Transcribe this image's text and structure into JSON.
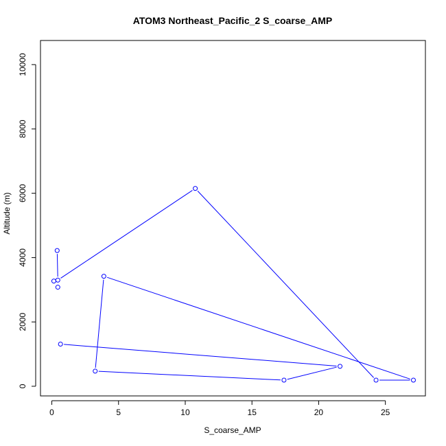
{
  "chart_data": {
    "type": "line",
    "title": "ATOM3 Northeast_Pacific_2 S_coarse_AMP",
    "xlabel": "S_coarse_AMP",
    "ylabel": "Altitude (m)",
    "xlim": [
      -0.85,
      28.0
    ],
    "ylim": [
      -300,
      10750
    ],
    "xticks": [
      0,
      5,
      10,
      15,
      20,
      25
    ],
    "yticks": [
      0,
      2000,
      4000,
      6000,
      8000,
      10000
    ],
    "grid": false,
    "legend": "none",
    "series_color": "#0000ff",
    "points": [
      {
        "x": 0.4,
        "y": 4220
      },
      {
        "x": 0.45,
        "y": 3300
      },
      {
        "x": 10.75,
        "y": 6150
      },
      {
        "x": 24.3,
        "y": 190
      },
      {
        "x": 27.1,
        "y": 190
      },
      {
        "x": 3.9,
        "y": 3420
      },
      {
        "x": 3.25,
        "y": 470
      },
      {
        "x": 17.4,
        "y": 190
      },
      {
        "x": 21.6,
        "y": 620
      },
      {
        "x": 0.65,
        "y": 1310
      }
    ],
    "extra_points": [
      {
        "x": 0.15,
        "y": 3270
      },
      {
        "x": 0.45,
        "y": 3080
      }
    ]
  }
}
